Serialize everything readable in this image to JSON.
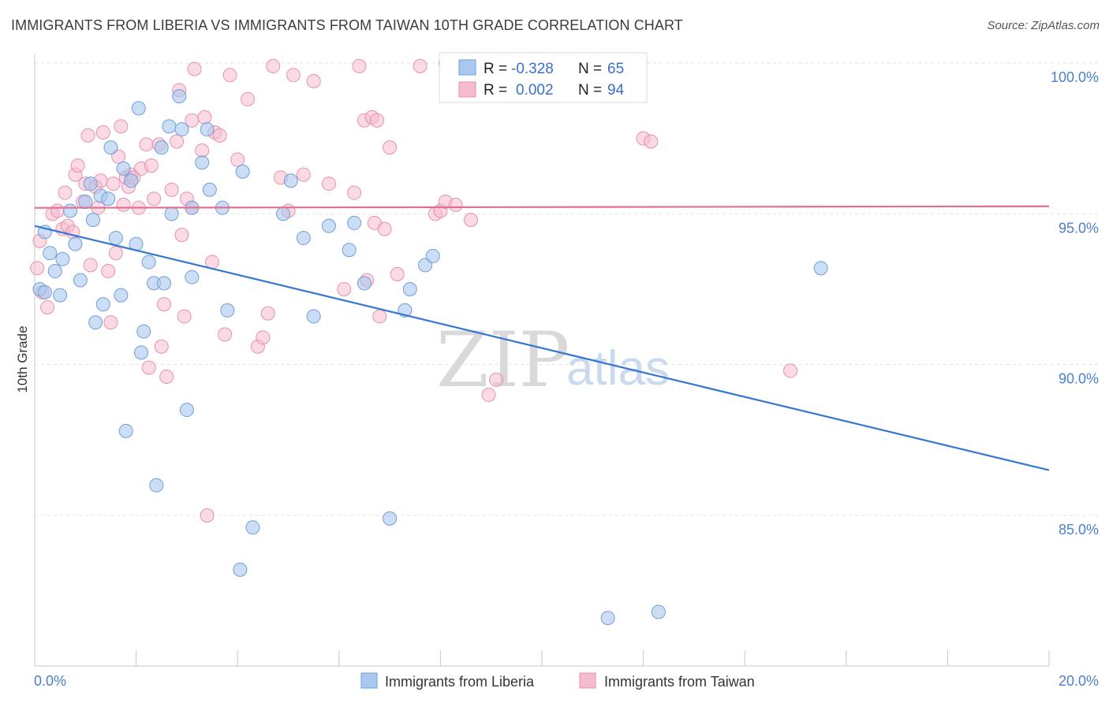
{
  "title": "IMMIGRANTS FROM LIBERIA VS IMMIGRANTS FROM TAIWAN 10TH GRADE CORRELATION CHART",
  "source": "Source: ZipAtlas.com",
  "watermark": {
    "zip": "ZIP",
    "atlas": "atlas"
  },
  "stats": {
    "r_label": "R =",
    "n_label": "N =",
    "liberia": {
      "r": "-0.328",
      "n": "65"
    },
    "taiwan": {
      "r": "0.002",
      "n": "94"
    }
  },
  "colors": {
    "liberia_fill": "#a9c8ef",
    "liberia_stroke": "#6f9fd8",
    "liberia_line": "#3575d3",
    "taiwan_fill": "#f6bccd",
    "taiwan_stroke": "#e891ad",
    "taiwan_line": "#e0708f",
    "tick_label": "#4a7fd0",
    "grid": "#e2e2e2"
  },
  "chart_data": {
    "type": "scatter",
    "title": "IMMIGRANTS FROM LIBERIA VS IMMIGRANTS FROM TAIWAN 10TH GRADE CORRELATION CHART",
    "xlabel": "",
    "ylabel": "10th Grade",
    "xlim": [
      0,
      20
    ],
    "ylim": [
      80.3,
      100.8
    ],
    "x_tick_labels": [
      {
        "value": 0,
        "label": "0.0%"
      },
      {
        "value": 20,
        "label": "20.0%"
      }
    ],
    "y_tick_labels": [
      {
        "value": 100,
        "label": "100.0%"
      },
      {
        "value": 95,
        "label": "95.0%"
      },
      {
        "value": 90,
        "label": "90.0%"
      },
      {
        "value": 85,
        "label": "85.0%"
      }
    ],
    "x_minor_ticks": [
      0,
      2,
      4,
      6,
      8,
      10,
      12,
      14,
      16,
      18,
      20
    ],
    "grid": true,
    "legend_position": "bottom-center",
    "series": [
      {
        "name": "Immigrants from Liberia",
        "color": "#a9c8ef",
        "trend": {
          "x": [
            0,
            20
          ],
          "y": [
            94.6,
            86.5
          ]
        },
        "points": [
          [
            0.1,
            92.5
          ],
          [
            0.2,
            94.4
          ],
          [
            0.3,
            93.7
          ],
          [
            0.4,
            93.1
          ],
          [
            0.5,
            92.3
          ],
          [
            0.55,
            93.5
          ],
          [
            0.7,
            95.1
          ],
          [
            0.8,
            94.0
          ],
          [
            0.9,
            92.8
          ],
          [
            1.0,
            95.4
          ],
          [
            1.1,
            96.0
          ],
          [
            1.15,
            94.8
          ],
          [
            1.2,
            91.4
          ],
          [
            1.3,
            95.6
          ],
          [
            1.35,
            92.0
          ],
          [
            1.45,
            95.5
          ],
          [
            1.5,
            97.2
          ],
          [
            1.6,
            94.2
          ],
          [
            1.7,
            92.3
          ],
          [
            1.75,
            96.5
          ],
          [
            1.8,
            87.8
          ],
          [
            1.9,
            96.1
          ],
          [
            2.0,
            94.0
          ],
          [
            2.05,
            98.5
          ],
          [
            2.1,
            90.4
          ],
          [
            2.15,
            91.1
          ],
          [
            2.25,
            93.4
          ],
          [
            2.35,
            92.7
          ],
          [
            2.4,
            86.0
          ],
          [
            2.5,
            97.2
          ],
          [
            2.55,
            92.7
          ],
          [
            2.65,
            97.9
          ],
          [
            2.7,
            95.0
          ],
          [
            2.85,
            98.9
          ],
          [
            2.9,
            97.8
          ],
          [
            3.0,
            88.5
          ],
          [
            3.1,
            95.2
          ],
          [
            3.1,
            92.9
          ],
          [
            3.3,
            96.7
          ],
          [
            3.4,
            97.8
          ],
          [
            3.45,
            95.8
          ],
          [
            3.7,
            95.2
          ],
          [
            3.8,
            91.8
          ],
          [
            4.05,
            83.2
          ],
          [
            4.1,
            96.4
          ],
          [
            4.3,
            84.6
          ],
          [
            4.9,
            95.0
          ],
          [
            5.05,
            96.1
          ],
          [
            5.3,
            94.2
          ],
          [
            5.5,
            91.6
          ],
          [
            5.8,
            94.6
          ],
          [
            6.2,
            93.8
          ],
          [
            6.3,
            94.7
          ],
          [
            6.5,
            92.7
          ],
          [
            7.0,
            84.9
          ],
          [
            7.3,
            91.8
          ],
          [
            7.4,
            92.5
          ],
          [
            7.7,
            93.3
          ],
          [
            7.85,
            93.6
          ],
          [
            8.1,
            100.0
          ],
          [
            8.2,
            99.9
          ],
          [
            11.3,
            81.6
          ],
          [
            12.3,
            81.8
          ],
          [
            15.5,
            93.2
          ],
          [
            0.2,
            92.4
          ]
        ]
      },
      {
        "name": "Immigrants from Taiwan",
        "color": "#f6bccd",
        "trend": {
          "x": [
            0,
            20
          ],
          "y": [
            95.2,
            95.25
          ]
        },
        "points": [
          [
            0.1,
            94.1
          ],
          [
            0.15,
            92.4
          ],
          [
            0.25,
            91.9
          ],
          [
            0.35,
            95.0
          ],
          [
            0.45,
            95.1
          ],
          [
            0.55,
            94.5
          ],
          [
            0.6,
            95.7
          ],
          [
            0.65,
            94.6
          ],
          [
            0.75,
            94.4
          ],
          [
            0.8,
            96.3
          ],
          [
            0.85,
            96.6
          ],
          [
            0.95,
            95.4
          ],
          [
            1.0,
            96.0
          ],
          [
            1.05,
            97.6
          ],
          [
            1.1,
            93.3
          ],
          [
            1.2,
            95.9
          ],
          [
            1.25,
            95.2
          ],
          [
            1.3,
            96.1
          ],
          [
            1.35,
            97.7
          ],
          [
            1.45,
            93.1
          ],
          [
            1.5,
            91.4
          ],
          [
            1.55,
            96.0
          ],
          [
            1.6,
            93.7
          ],
          [
            1.65,
            96.9
          ],
          [
            1.7,
            97.9
          ],
          [
            1.75,
            95.3
          ],
          [
            1.8,
            96.2
          ],
          [
            1.85,
            95.9
          ],
          [
            1.9,
            96.3
          ],
          [
            1.95,
            96.2
          ],
          [
            2.05,
            95.2
          ],
          [
            2.1,
            96.5
          ],
          [
            2.2,
            97.3
          ],
          [
            2.25,
            89.9
          ],
          [
            2.3,
            96.6
          ],
          [
            2.35,
            95.5
          ],
          [
            2.45,
            97.3
          ],
          [
            2.5,
            90.6
          ],
          [
            2.55,
            92.0
          ],
          [
            2.6,
            89.6
          ],
          [
            2.7,
            95.8
          ],
          [
            2.8,
            97.4
          ],
          [
            2.85,
            99.1
          ],
          [
            2.9,
            94.3
          ],
          [
            2.95,
            91.6
          ],
          [
            3.0,
            95.5
          ],
          [
            3.1,
            95.2
          ],
          [
            3.1,
            98.1
          ],
          [
            3.15,
            99.8
          ],
          [
            3.3,
            97.1
          ],
          [
            3.35,
            98.2
          ],
          [
            3.4,
            85.0
          ],
          [
            3.5,
            93.4
          ],
          [
            3.55,
            97.7
          ],
          [
            3.65,
            97.6
          ],
          [
            3.75,
            91.0
          ],
          [
            3.85,
            99.6
          ],
          [
            4.0,
            96.8
          ],
          [
            4.2,
            98.8
          ],
          [
            4.4,
            90.6
          ],
          [
            4.5,
            90.9
          ],
          [
            4.6,
            91.7
          ],
          [
            4.7,
            99.9
          ],
          [
            4.85,
            96.2
          ],
          [
            5.0,
            95.1
          ],
          [
            5.1,
            99.6
          ],
          [
            5.3,
            96.3
          ],
          [
            5.5,
            99.4
          ],
          [
            5.8,
            96.0
          ],
          [
            6.1,
            92.5
          ],
          [
            6.3,
            95.7
          ],
          [
            6.4,
            99.9
          ],
          [
            6.5,
            98.1
          ],
          [
            6.55,
            92.8
          ],
          [
            6.65,
            98.2
          ],
          [
            6.7,
            94.7
          ],
          [
            6.75,
            98.1
          ],
          [
            6.8,
            91.6
          ],
          [
            6.9,
            94.5
          ],
          [
            7.0,
            97.2
          ],
          [
            7.15,
            93.0
          ],
          [
            7.6,
            99.9
          ],
          [
            7.9,
            95.0
          ],
          [
            8.0,
            95.1
          ],
          [
            8.1,
            95.4
          ],
          [
            8.3,
            95.3
          ],
          [
            8.6,
            94.8
          ],
          [
            8.95,
            89.0
          ],
          [
            9.1,
            89.5
          ],
          [
            9.5,
            100.0
          ],
          [
            12.0,
            97.5
          ],
          [
            12.15,
            97.4
          ],
          [
            14.9,
            89.8
          ],
          [
            0.05,
            93.2
          ]
        ]
      }
    ]
  },
  "legend": {
    "items": [
      {
        "label": "Immigrants from Liberia"
      },
      {
        "label": "Immigrants from Taiwan"
      }
    ]
  }
}
